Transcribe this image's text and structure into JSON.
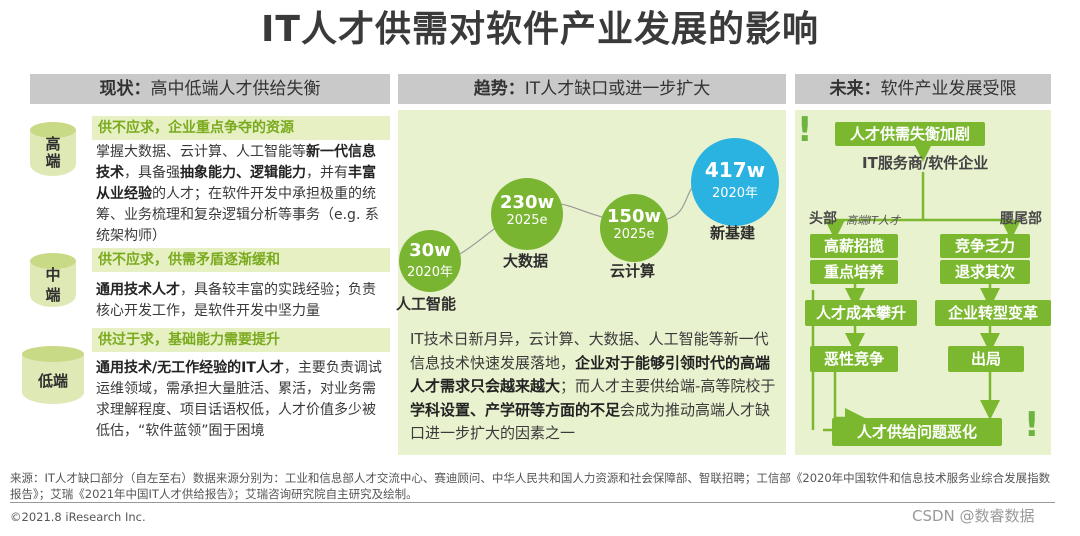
{
  "title": "IT人才供需对软件产业发展的影响",
  "headers": [
    {
      "key": "现状：",
      "text": "高中低端人才供给失衡"
    },
    {
      "key": "趋势：",
      "text": "IT人才缺口或进一步扩大"
    },
    {
      "key": "未来：",
      "text": "软件产业发展受限"
    }
  ],
  "left": {
    "tiers": [
      "高端",
      "中端",
      "低端"
    ],
    "blocks": [
      {
        "head": "供不应求，企业重点争夺的资源",
        "segments": [
          {
            "t": "掌握大数据、云计算、人工智能等",
            "b": false
          },
          {
            "t": "新一代信息技术",
            "b": true
          },
          {
            "t": "，具备强",
            "b": false
          },
          {
            "t": "抽象能力、逻辑能力",
            "b": true
          },
          {
            "t": "，并有",
            "b": false
          },
          {
            "t": "丰富从业经验",
            "b": true
          },
          {
            "t": "的人才；在软件开发中承担极重的统筹、业务梳理和复杂逻辑分析等事务（e.g. 系统架构师）",
            "b": false
          }
        ]
      },
      {
        "head": "供不应求，供需矛盾逐渐缓和",
        "segments": [
          {
            "t": "通用技术人才",
            "b": true
          },
          {
            "t": "，具备较丰富的实践经验；负责核心开发工作，是软件开发中坚力量",
            "b": false
          }
        ]
      },
      {
        "head": "供过于求，基础能力需要提升",
        "segments": [
          {
            "t": "通用技术/无工作经验的IT人才",
            "b": true
          },
          {
            "t": "，主要负责调试运维领域，需承担大量脏活、累活，对业务需求理解程度、项目话语权低，人才价值多少被低估，“软件蓝领”囿于困境",
            "b": false
          }
        ]
      }
    ]
  },
  "middle": {
    "bubbles": [
      {
        "value": "30w",
        "year": "2020年",
        "label": "人工智能"
      },
      {
        "value": "230w",
        "year": "2025e",
        "label": "大数据"
      },
      {
        "value": "150w",
        "year": "2025e",
        "label": "云计算"
      },
      {
        "value": "417w",
        "year": "2020年",
        "label": "新基建"
      }
    ],
    "segments": [
      {
        "t": "IT技术日新月异，云计算、大数据、人工智能等新一代信息技术快速发展落地，",
        "b": false
      },
      {
        "t": "企业对于能够引领时代的高端人才需求只会越来越大",
        "b": true
      },
      {
        "t": "；而人才主要供给端-高等院校于",
        "b": false
      },
      {
        "t": "学科设置、产学研等方面的不足",
        "b": true
      },
      {
        "t": "会成为推动高端人才缺口进一步扩大的因素之一",
        "b": false
      }
    ]
  },
  "right": {
    "top_box": "人才供需失衡加剧",
    "subtitle": "IT服务商/软件企业",
    "head_label": "头部",
    "tail_label": "腰尾部",
    "arrow_note": "高端IT人才",
    "left_boxes": [
      "高薪招揽",
      "重点培养",
      "人才成本攀升",
      "恶性竞争"
    ],
    "right_boxes": [
      "竞争乏力",
      "退求其次",
      "企业转型变革",
      "出局"
    ],
    "bottom_box": "人才供给问题恶化"
  },
  "source": "来源：IT人才缺口部分（自左至右）数据来源分别为：工业和信息部人才交流中心、赛迪顾问、中华人民共和国人力资源和社会保障部、智联招聘；工信部《2020年中国软件和信息技术服务业综合发展指数报告》；艾瑞《2021年中国IT人才供给报告》；艾瑞咨询研究院自主研究及绘制。",
  "copyright": "©2021.8 iResearch Inc.",
  "watermark": "CSDN @数睿数据",
  "colors": {
    "accent_green": "#7cb82f",
    "bubble_green": "#7ab532",
    "bubble_blue": "#2ab3e0",
    "panel_bg": "#e9f2cf",
    "header_bg": "#c9c9c9"
  }
}
